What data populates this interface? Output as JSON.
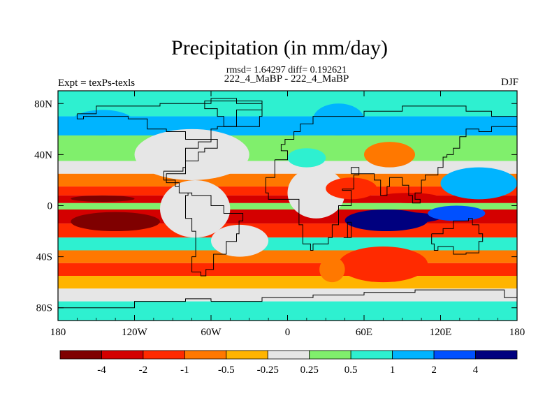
{
  "chart_data": {
    "type": "heatmap",
    "title": "Precipitation (in mm/day)",
    "stats_line": "rmsd= 1.64297 diff= 0.192621",
    "subtitle": "222_4_MaBP - 222_4_MaBP",
    "left_string": "Expt = texPs-texls",
    "right_string": "DJF",
    "x_tick_labels": [
      "180",
      "120W",
      "60W",
      "0",
      "60E",
      "120E",
      "180"
    ],
    "x_tick_values": [
      -180,
      -120,
      -60,
      0,
      60,
      120,
      180
    ],
    "y_tick_labels": [
      "80N",
      "40N",
      "0",
      "40S",
      "80S"
    ],
    "y_tick_values": [
      80,
      40,
      0,
      -40,
      -80
    ],
    "xlim": [
      -180,
      180
    ],
    "ylim": [
      -90,
      90
    ],
    "colorbar": {
      "levels": [
        "-4",
        "-2",
        "-1",
        "-0.5",
        "-0.25",
        "0.25",
        "0.5",
        "1",
        "2",
        "4"
      ],
      "colors": [
        "#7f0000",
        "#d40000",
        "#ff2a00",
        "#ff7800",
        "#ffb400",
        "#e6e6e6",
        "#80ef6c",
        "#2ef0d0",
        "#00b4ff",
        "#0050ff",
        "#00007f"
      ]
    },
    "bands": [
      {
        "lat": [
          70,
          90
        ],
        "value": 0.6
      },
      {
        "lat": [
          55,
          70
        ],
        "value": 1.2
      },
      {
        "lat": [
          35,
          55
        ],
        "value": 0.4
      },
      {
        "lat": [
          25,
          35
        ],
        "value": 0.0
      },
      {
        "lat": [
          15,
          25
        ],
        "value": -0.7
      },
      {
        "lat": [
          8,
          15
        ],
        "value": -1.5
      },
      {
        "lat": [
          2,
          8
        ],
        "value": -3.0
      },
      {
        "lat": [
          -3,
          2
        ],
        "value": 0.4
      },
      {
        "lat": [
          -14,
          -3
        ],
        "value": -3.0
      },
      {
        "lat": [
          -25,
          -14
        ],
        "value": -1.2
      },
      {
        "lat": [
          -35,
          -25
        ],
        "value": 0.6
      },
      {
        "lat": [
          -45,
          -35
        ],
        "value": -0.6
      },
      {
        "lat": [
          -55,
          -45
        ],
        "value": -1.5
      },
      {
        "lat": [
          -65,
          -55
        ],
        "value": -0.4
      },
      {
        "lat": [
          -75,
          -65
        ],
        "value": 0.1
      },
      {
        "lat": [
          -90,
          -75
        ],
        "value": 0.6
      }
    ],
    "patches": [
      {
        "lon": [
          -120,
          -30
        ],
        "lat": [
          20,
          60
        ],
        "value": 0.0
      },
      {
        "lon": [
          -100,
          -45
        ],
        "lat": [
          -25,
          20
        ],
        "value": 0.0
      },
      {
        "lon": [
          -60,
          -15
        ],
        "lat": [
          -40,
          -15
        ],
        "value": 0.0
      },
      {
        "lon": [
          0,
          45
        ],
        "lat": [
          -10,
          30
        ],
        "value": 0.0
      },
      {
        "lon": [
          0,
          30
        ],
        "lat": [
          30,
          45
        ],
        "value": 0.7
      },
      {
        "lon": [
          30,
          70
        ],
        "lat": [
          5,
          22
        ],
        "value": -1.5
      },
      {
        "lon": [
          45,
          110
        ],
        "lat": [
          -20,
          -3
        ],
        "value": 4.5
      },
      {
        "lon": [
          55,
          120
        ],
        "lat": [
          -14,
          -5
        ],
        "value": 6.0
      },
      {
        "lon": [
          110,
          155
        ],
        "lat": [
          -12,
          0
        ],
        "value": 2.5
      },
      {
        "lon": [
          70,
          120
        ],
        "lat": [
          2,
          10
        ],
        "value": -2.5
      },
      {
        "lon": [
          40,
          110
        ],
        "lat": [
          -60,
          -32
        ],
        "value": -1.4
      },
      {
        "lon": [
          25,
          45
        ],
        "lat": [
          -60,
          -40
        ],
        "value": -0.7
      },
      {
        "lon": [
          -170,
          -100
        ],
        "lat": [
          -20,
          -5
        ],
        "value": -4.5
      },
      {
        "lon": [
          -170,
          -120
        ],
        "lat": [
          3,
          8
        ],
        "value": -4.5
      },
      {
        "lon": [
          120,
          180
        ],
        "lat": [
          5,
          30
        ],
        "value": 1.5
      },
      {
        "lon": [
          20,
          60
        ],
        "lat": [
          55,
          80
        ],
        "value": 1.5
      },
      {
        "lon": [
          -170,
          -120
        ],
        "lat": [
          55,
          75
        ],
        "value": 1.5
      },
      {
        "lon": [
          60,
          100
        ],
        "lat": [
          30,
          50
        ],
        "value": -0.7
      }
    ]
  }
}
